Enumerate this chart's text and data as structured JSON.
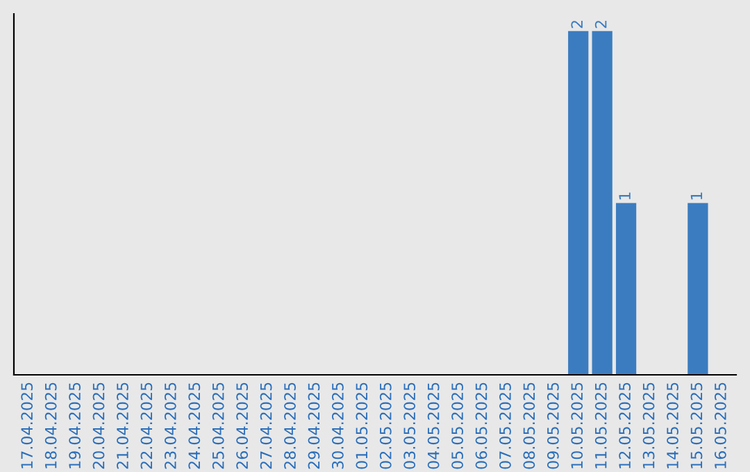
{
  "chart_data": {
    "type": "bar",
    "categories": [
      "17.04.2025",
      "18.04.2025",
      "19.04.2025",
      "20.04.2025",
      "21.04.2025",
      "22.04.2025",
      "23.04.2025",
      "24.04.2025",
      "25.04.2025",
      "26.04.2025",
      "27.04.2025",
      "28.04.2025",
      "29.04.2025",
      "30.04.2025",
      "01.05.2025",
      "02.05.2025",
      "03.05.2025",
      "04.05.2025",
      "05.05.2025",
      "06.05.2025",
      "07.05.2025",
      "08.05.2025",
      "09.05.2025",
      "10.05.2025",
      "11.05.2025",
      "12.05.2025",
      "13.05.2025",
      "14.05.2025",
      "15.05.2025",
      "16.05.2025"
    ],
    "values": [
      null,
      null,
      null,
      null,
      null,
      null,
      null,
      null,
      null,
      null,
      null,
      null,
      null,
      null,
      null,
      null,
      null,
      null,
      null,
      null,
      null,
      null,
      null,
      2,
      2,
      1,
      null,
      null,
      1,
      null
    ],
    "value_labels": [
      null,
      null,
      null,
      null,
      null,
      null,
      null,
      null,
      null,
      null,
      null,
      null,
      null,
      null,
      null,
      null,
      null,
      null,
      null,
      null,
      null,
      null,
      null,
      "2",
      "2",
      "1",
      null,
      null,
      "1",
      null
    ],
    "color": "#3b7cc0",
    "tick_labels": "x",
    "grid": false,
    "legend": false
  }
}
